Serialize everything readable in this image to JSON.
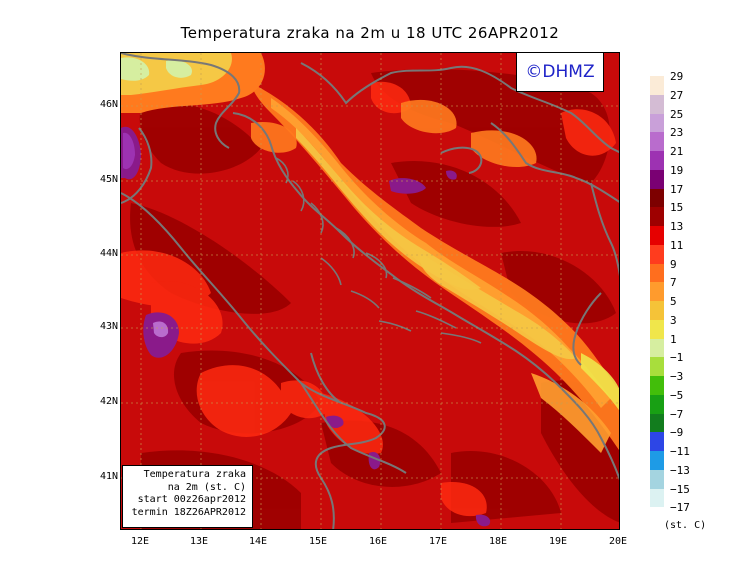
{
  "title": "Temperatura zraka na 2m u 18 UTC 26APR2012",
  "logo": "©DHMZ",
  "infobox": {
    "line1": "Temperatura zraka",
    "line2": "na 2m (st. C)",
    "line3": "start 00z26apr2012",
    "line4": "termin 18Z26APR2012"
  },
  "y_labels": [
    "46N",
    "45N",
    "44N",
    "43N",
    "42N",
    "41N"
  ],
  "x_labels": [
    "12E",
    "13E",
    "14E",
    "15E",
    "16E",
    "17E",
    "18E",
    "19E",
    "20E"
  ],
  "colorbar": {
    "units": "(st. C)",
    "labels": [
      "29",
      "27",
      "25",
      "23",
      "21",
      "19",
      "17",
      "15",
      "13",
      "11",
      "9",
      "7",
      "5",
      "3",
      "1",
      "−1",
      "−3",
      "−5",
      "−7",
      "−9",
      "−11",
      "−13",
      "−15",
      "−17"
    ],
    "colors": [
      "#fbebd7",
      "#d4bcd4",
      "#c9a0d9",
      "#b96ccd",
      "#9d32b2",
      "#7a0073",
      "#7d0000",
      "#9e0000",
      "#e60000",
      "#ff3c1e",
      "#ff6e1e",
      "#ff9b2d",
      "#f5c338",
      "#f0e64b",
      "#d6eea0",
      "#a8de3c",
      "#42be0a",
      "#18a014",
      "#127d1e",
      "#2d46e6",
      "#1e9be6",
      "#a4d4e0",
      "#dcf2f2",
      "#ffffff"
    ]
  },
  "map": {
    "lon_range": [
      11.75,
      20.0
    ],
    "lat_range": [
      40.3,
      46.8
    ],
    "base_color": "#c80a0a"
  }
}
